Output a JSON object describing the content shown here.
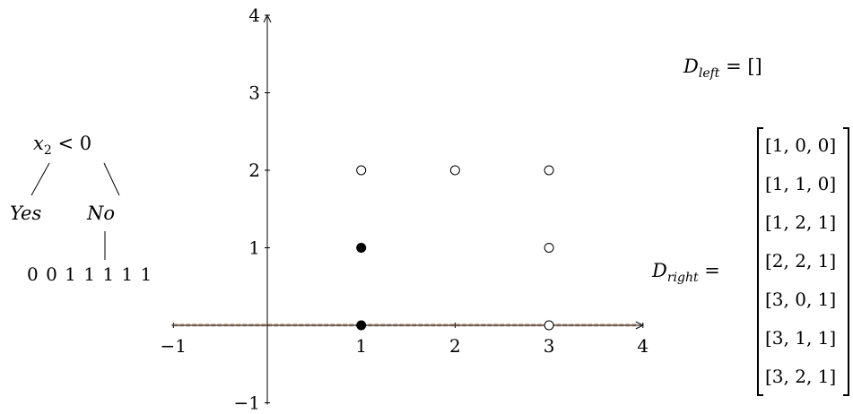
{
  "tree": {
    "root": {
      "var": "x",
      "sub": "2",
      "rest": " < 0"
    },
    "yes_label": "Yes",
    "no_label": "No",
    "labels_sequence": "0 0 1 1 1 1 1"
  },
  "d_left": {
    "base": "D",
    "sub": "left",
    "value": " = []"
  },
  "d_right": {
    "base": "D",
    "sub": "right",
    "equals": " =",
    "rows": [
      "[1, 0, 0]",
      "[1, 1, 0]",
      "[1, 2, 1]",
      "[2, 2, 1]",
      "[3, 0, 1]",
      "[3, 1, 1]",
      "[3, 2, 1]"
    ]
  },
  "chart_data": {
    "type": "scatter",
    "x_ticks": [
      "−1",
      "1",
      "2",
      "3",
      "4"
    ],
    "y_ticks": [
      "−1",
      "1",
      "2",
      "3",
      "4"
    ],
    "xlim": [
      -1,
      4
    ],
    "ylim": [
      -1,
      4
    ],
    "split_line": {
      "y": 0,
      "color": "#b08a6a",
      "style": "dashed"
    },
    "points": [
      {
        "x": 1,
        "y": 0,
        "label": 0,
        "filled": true
      },
      {
        "x": 1,
        "y": 1,
        "label": 0,
        "filled": true
      },
      {
        "x": 1,
        "y": 2,
        "label": 1,
        "filled": false
      },
      {
        "x": 2,
        "y": 2,
        "label": 1,
        "filled": false
      },
      {
        "x": 3,
        "y": 0,
        "label": 1,
        "filled": false
      },
      {
        "x": 3,
        "y": 1,
        "label": 1,
        "filled": false
      },
      {
        "x": 3,
        "y": 2,
        "label": 1,
        "filled": false
      }
    ]
  }
}
